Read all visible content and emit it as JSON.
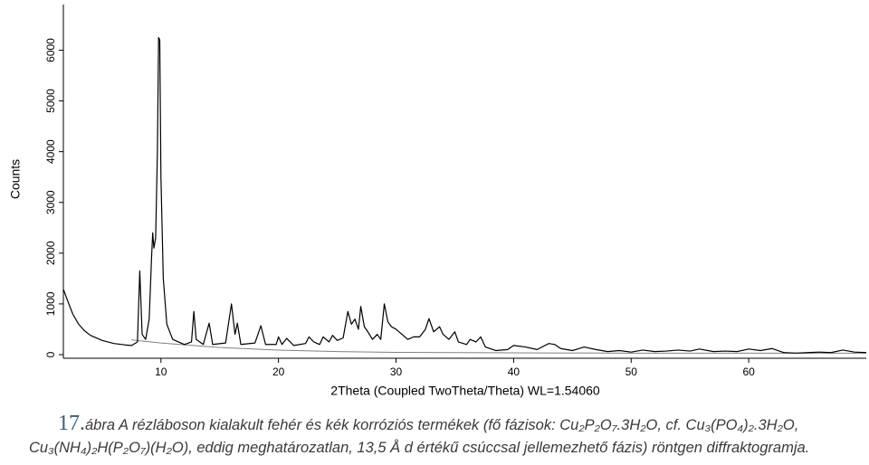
{
  "chart_data": {
    "type": "line",
    "y_label": "Counts",
    "x_label": "2Theta (Coupled TwoTheta/Theta) WL=1.54060",
    "x": [
      1.7,
      2,
      2.5,
      3,
      3.5,
      4,
      5,
      6,
      7,
      7.5,
      8.0,
      8.2,
      8.4,
      8.7,
      9.0,
      9.2,
      9.3,
      9.4,
      9.55,
      9.7,
      9.8,
      9.9,
      10.0,
      10.2,
      10.5,
      11,
      12,
      12.6,
      12.8,
      13.0,
      13.6,
      14.1,
      14.4,
      15.5,
      16.0,
      16.3,
      16.5,
      16.8,
      18.0,
      18.5,
      18.9,
      19.8,
      20.0,
      20.3,
      20.7,
      21.3,
      22.3,
      22.6,
      23,
      23.5,
      23.8,
      24.3,
      24.6,
      25.0,
      25.5,
      25.9,
      26.2,
      26.5,
      26.8,
      27.0,
      27.3,
      27.6,
      28,
      28.4,
      28.7,
      29.0,
      29.3,
      29.6,
      30.0,
      30.5,
      31,
      31.5,
      32.0,
      32.5,
      32.8,
      33.2,
      33.7,
      34.0,
      34.5,
      35.0,
      35.3,
      36.0,
      36.3,
      36.8,
      37.2,
      37.6,
      38.5,
      39.5,
      40,
      41,
      42,
      43,
      43.5,
      44,
      45,
      46,
      47,
      48,
      49,
      50,
      51,
      52,
      53,
      54,
      55,
      55.8,
      57,
      58,
      59,
      60,
      61,
      62,
      63,
      64,
      65,
      66,
      67,
      68,
      69,
      70
    ],
    "values": [
      1290,
      1100,
      800,
      600,
      470,
      380,
      280,
      220,
      190,
      180,
      250,
      1650,
      400,
      300,
      700,
      1900,
      2400,
      2100,
      2300,
      4000,
      6250,
      6200,
      3500,
      1500,
      600,
      300,
      200,
      250,
      850,
      300,
      200,
      620,
      200,
      230,
      1000,
      400,
      620,
      200,
      230,
      570,
      200,
      200,
      350,
      200,
      320,
      180,
      220,
      350,
      250,
      200,
      350,
      250,
      380,
      280,
      330,
      850,
      600,
      700,
      500,
      950,
      550,
      450,
      300,
      400,
      300,
      1000,
      650,
      550,
      500,
      400,
      300,
      350,
      350,
      500,
      710,
      450,
      550,
      400,
      300,
      450,
      250,
      200,
      300,
      250,
      350,
      150,
      80,
      100,
      180,
      150,
      100,
      220,
      200,
      120,
      80,
      150,
      100,
      60,
      80,
      50,
      90,
      60,
      70,
      90,
      70,
      110,
      60,
      70,
      60,
      110,
      80,
      120,
      40,
      30,
      40,
      50,
      40,
      90,
      50,
      40
    ],
    "color": "#000000",
    "background": {
      "x": [
        7.5,
        10,
        15,
        20,
        25,
        30,
        40,
        50,
        60,
        70
      ],
      "values": [
        290,
        230,
        140,
        90,
        60,
        45,
        35,
        30,
        30,
        30
      ],
      "color": "#808080"
    },
    "xlim": [
      1.7,
      70
    ],
    "ylim": [
      0,
      6900
    ],
    "xticks": [
      10,
      20,
      30,
      40,
      50,
      60
    ],
    "yticks": [
      0,
      1000,
      2000,
      3000,
      4000,
      5000,
      6000
    ],
    "caption": {
      "number": "17.",
      "lines": [
        "ábra A rézláboson kialakult fehér és kék korróziós termékek (fő fázisok: Cu₂P₂O₇.3H₂O, cf. Cu₃(PO₄)₂.3H₂O,",
        "Cu₃(NH₄)₂H(P₂O₇)(H₂O), eddig meghatározatlan, 13,5 Å d értékű csúccsal jellemezhető fázis) röntgen diffraktogramja."
      ]
    }
  }
}
